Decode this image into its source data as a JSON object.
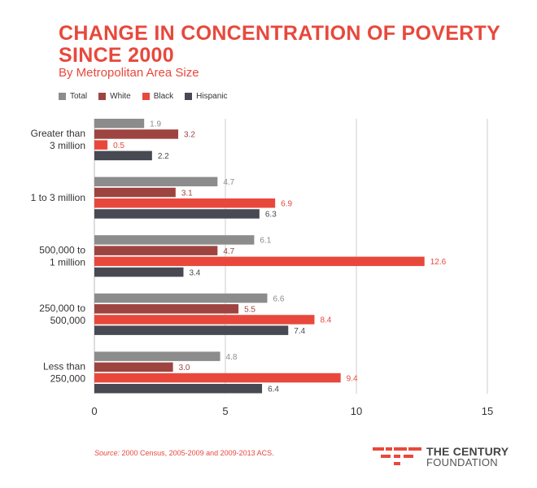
{
  "title": "CHANGE IN CONCENTRATION OF POVERTY SINCE 2000",
  "subtitle": "By Metropolitan Area Size",
  "source_label": "Source:",
  "source_text": " 2000 Census, 2005-2009 and 2009-2013 ACS.",
  "logo": {
    "line1": "THE CENTURY",
    "line2": "FOUNDATION"
  },
  "colors": {
    "accent": "#e8483c",
    "total": "#8c8c8c",
    "white": "#9e4440",
    "black": "#e8483c",
    "hispanic": "#474a52",
    "grid": "#cccccc",
    "axis_text": "#333333"
  },
  "chart_data": {
    "type": "bar",
    "orientation": "horizontal",
    "title": "CHANGE IN CONCENTRATION OF POVERTY SINCE 2000",
    "subtitle": "By Metropolitan Area Size",
    "xlabel": "",
    "ylabel": "",
    "xlim": [
      0,
      15
    ],
    "xticks": [
      0,
      5,
      10,
      15
    ],
    "grid": true,
    "legend_position": "top-left",
    "categories": [
      [
        "Greater than",
        "3 million"
      ],
      [
        "1 to 3 million"
      ],
      [
        "500,000 to",
        "1 million"
      ],
      [
        "250,000 to",
        "500,000"
      ],
      [
        "Less than",
        "250,000"
      ]
    ],
    "series": [
      {
        "name": "Total",
        "color": "#8c8c8c",
        "label_color": "#8c8c8c",
        "values": [
          1.9,
          4.7,
          6.1,
          6.6,
          4.8
        ]
      },
      {
        "name": "White",
        "color": "#9e4440",
        "label_color": "#9e4440",
        "values": [
          3.2,
          3.1,
          4.7,
          5.5,
          3.0
        ]
      },
      {
        "name": "Black",
        "color": "#e8483c",
        "label_color": "#e8483c",
        "values": [
          0.5,
          6.9,
          12.6,
          8.4,
          9.4
        ]
      },
      {
        "name": "Hispanic",
        "color": "#474a52",
        "label_color": "#474a52",
        "values": [
          2.2,
          6.3,
          3.4,
          7.4,
          6.4
        ]
      }
    ]
  }
}
